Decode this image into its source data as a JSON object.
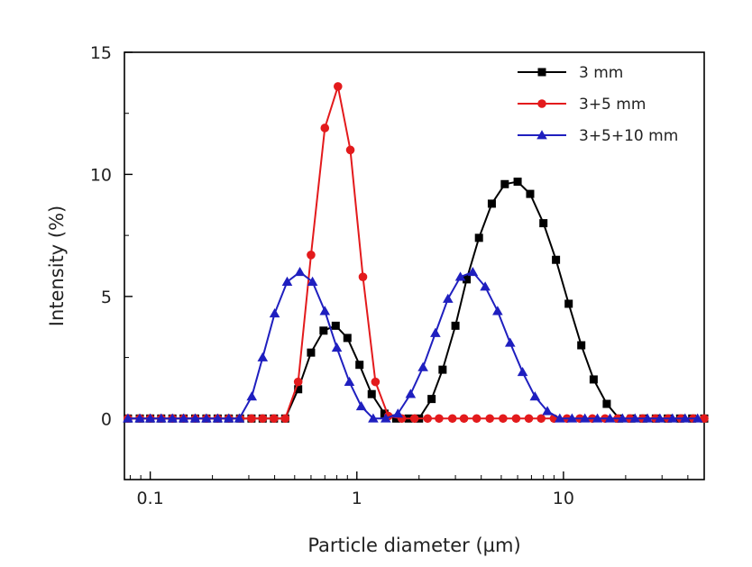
{
  "chart_data": {
    "type": "line",
    "xscale": "log",
    "xlim": [
      0.075,
      48
    ],
    "ylim": [
      -2.5,
      15
    ],
    "xlabel": "Particle diameter (µm)",
    "ylabel": "Intensity (%)",
    "x_ticks": [
      0.1,
      1,
      10
    ],
    "x_tick_labels": [
      "0.1",
      "1",
      "10"
    ],
    "y_ticks": [
      0,
      5,
      10,
      15
    ],
    "y_tick_labels": [
      "0",
      "5",
      "10",
      "15"
    ],
    "grid": false,
    "legend_position": "top-right",
    "series": [
      {
        "name": "3 mm",
        "color": "#000000",
        "marker": "square",
        "points": [
          [
            0.078,
            0
          ],
          [
            0.089,
            0
          ],
          [
            0.1,
            0
          ],
          [
            0.113,
            0
          ],
          [
            0.128,
            0
          ],
          [
            0.145,
            0
          ],
          [
            0.165,
            0
          ],
          [
            0.187,
            0
          ],
          [
            0.212,
            0
          ],
          [
            0.24,
            0
          ],
          [
            0.272,
            0
          ],
          [
            0.309,
            0
          ],
          [
            0.35,
            0
          ],
          [
            0.397,
            0
          ],
          [
            0.45,
            0
          ],
          [
            0.52,
            1.2
          ],
          [
            0.6,
            2.7
          ],
          [
            0.69,
            3.6
          ],
          [
            0.79,
            3.8
          ],
          [
            0.9,
            3.3
          ],
          [
            1.03,
            2.2
          ],
          [
            1.18,
            1.0
          ],
          [
            1.36,
            0.2
          ],
          [
            1.55,
            0
          ],
          [
            1.78,
            0
          ],
          [
            2.0,
            0
          ],
          [
            2.3,
            0.8
          ],
          [
            2.6,
            2.0
          ],
          [
            3.0,
            3.8
          ],
          [
            3.4,
            5.7
          ],
          [
            3.9,
            7.4
          ],
          [
            4.5,
            8.8
          ],
          [
            5.2,
            9.6
          ],
          [
            6.0,
            9.7
          ],
          [
            6.9,
            9.2
          ],
          [
            8.0,
            8.0
          ],
          [
            9.2,
            6.5
          ],
          [
            10.6,
            4.7
          ],
          [
            12.2,
            3.0
          ],
          [
            14.0,
            1.6
          ],
          [
            16.2,
            0.6
          ],
          [
            18.6,
            0
          ],
          [
            21.3,
            0
          ],
          [
            24.4,
            0
          ],
          [
            28.0,
            0
          ],
          [
            32.0,
            0
          ],
          [
            36.7,
            0
          ],
          [
            42.0,
            0
          ],
          [
            48.0,
            0
          ]
        ]
      },
      {
        "name": "3+5 mm",
        "color": "#e31a1c",
        "marker": "circle",
        "points": [
          [
            0.078,
            0
          ],
          [
            0.089,
            0
          ],
          [
            0.1,
            0
          ],
          [
            0.113,
            0
          ],
          [
            0.128,
            0
          ],
          [
            0.145,
            0
          ],
          [
            0.165,
            0
          ],
          [
            0.187,
            0
          ],
          [
            0.212,
            0
          ],
          [
            0.24,
            0
          ],
          [
            0.272,
            0
          ],
          [
            0.309,
            0
          ],
          [
            0.35,
            0
          ],
          [
            0.397,
            0
          ],
          [
            0.45,
            0
          ],
          [
            0.52,
            1.5
          ],
          [
            0.6,
            6.7
          ],
          [
            0.7,
            11.9
          ],
          [
            0.81,
            13.6
          ],
          [
            0.93,
            11.0
          ],
          [
            1.07,
            5.8
          ],
          [
            1.23,
            1.5
          ],
          [
            1.42,
            0.1
          ],
          [
            1.65,
            0
          ],
          [
            1.9,
            0
          ],
          [
            2.2,
            0
          ],
          [
            2.5,
            0
          ],
          [
            2.9,
            0
          ],
          [
            3.3,
            0
          ],
          [
            3.8,
            0
          ],
          [
            4.4,
            0
          ],
          [
            5.1,
            0
          ],
          [
            5.9,
            0
          ],
          [
            6.8,
            0
          ],
          [
            7.8,
            0
          ],
          [
            9.0,
            0
          ],
          [
            10.4,
            0
          ],
          [
            12.0,
            0
          ],
          [
            13.8,
            0
          ],
          [
            15.9,
            0
          ],
          [
            18.3,
            0
          ],
          [
            21.0,
            0
          ],
          [
            24.2,
            0
          ],
          [
            27.9,
            0
          ],
          [
            32.1,
            0
          ],
          [
            37.0,
            0
          ],
          [
            42.5,
            0
          ],
          [
            48.0,
            0
          ]
        ]
      },
      {
        "name": "3+5+10 mm",
        "color": "#1f1fbf",
        "marker": "triangle",
        "points": [
          [
            0.078,
            0
          ],
          [
            0.089,
            0
          ],
          [
            0.1,
            0
          ],
          [
            0.113,
            0
          ],
          [
            0.128,
            0
          ],
          [
            0.145,
            0
          ],
          [
            0.165,
            0
          ],
          [
            0.187,
            0
          ],
          [
            0.212,
            0
          ],
          [
            0.24,
            0
          ],
          [
            0.27,
            0
          ],
          [
            0.31,
            0.9
          ],
          [
            0.35,
            2.5
          ],
          [
            0.4,
            4.3
          ],
          [
            0.46,
            5.6
          ],
          [
            0.53,
            6.0
          ],
          [
            0.61,
            5.6
          ],
          [
            0.7,
            4.4
          ],
          [
            0.8,
            2.9
          ],
          [
            0.92,
            1.5
          ],
          [
            1.05,
            0.5
          ],
          [
            1.2,
            0
          ],
          [
            1.38,
            0
          ],
          [
            1.58,
            0.2
          ],
          [
            1.82,
            1.0
          ],
          [
            2.09,
            2.1
          ],
          [
            2.4,
            3.5
          ],
          [
            2.76,
            4.9
          ],
          [
            3.17,
            5.8
          ],
          [
            3.64,
            6.0
          ],
          [
            4.18,
            5.4
          ],
          [
            4.8,
            4.4
          ],
          [
            5.52,
            3.1
          ],
          [
            6.34,
            1.9
          ],
          [
            7.28,
            0.9
          ],
          [
            8.36,
            0.3
          ],
          [
            9.6,
            0
          ],
          [
            11.0,
            0
          ],
          [
            12.7,
            0
          ],
          [
            14.6,
            0
          ],
          [
            16.8,
            0
          ],
          [
            19.3,
            0
          ],
          [
            22.2,
            0
          ],
          [
            25.5,
            0
          ],
          [
            29.3,
            0
          ],
          [
            33.7,
            0
          ],
          [
            38.8,
            0
          ],
          [
            44.6,
            0
          ]
        ]
      }
    ]
  }
}
